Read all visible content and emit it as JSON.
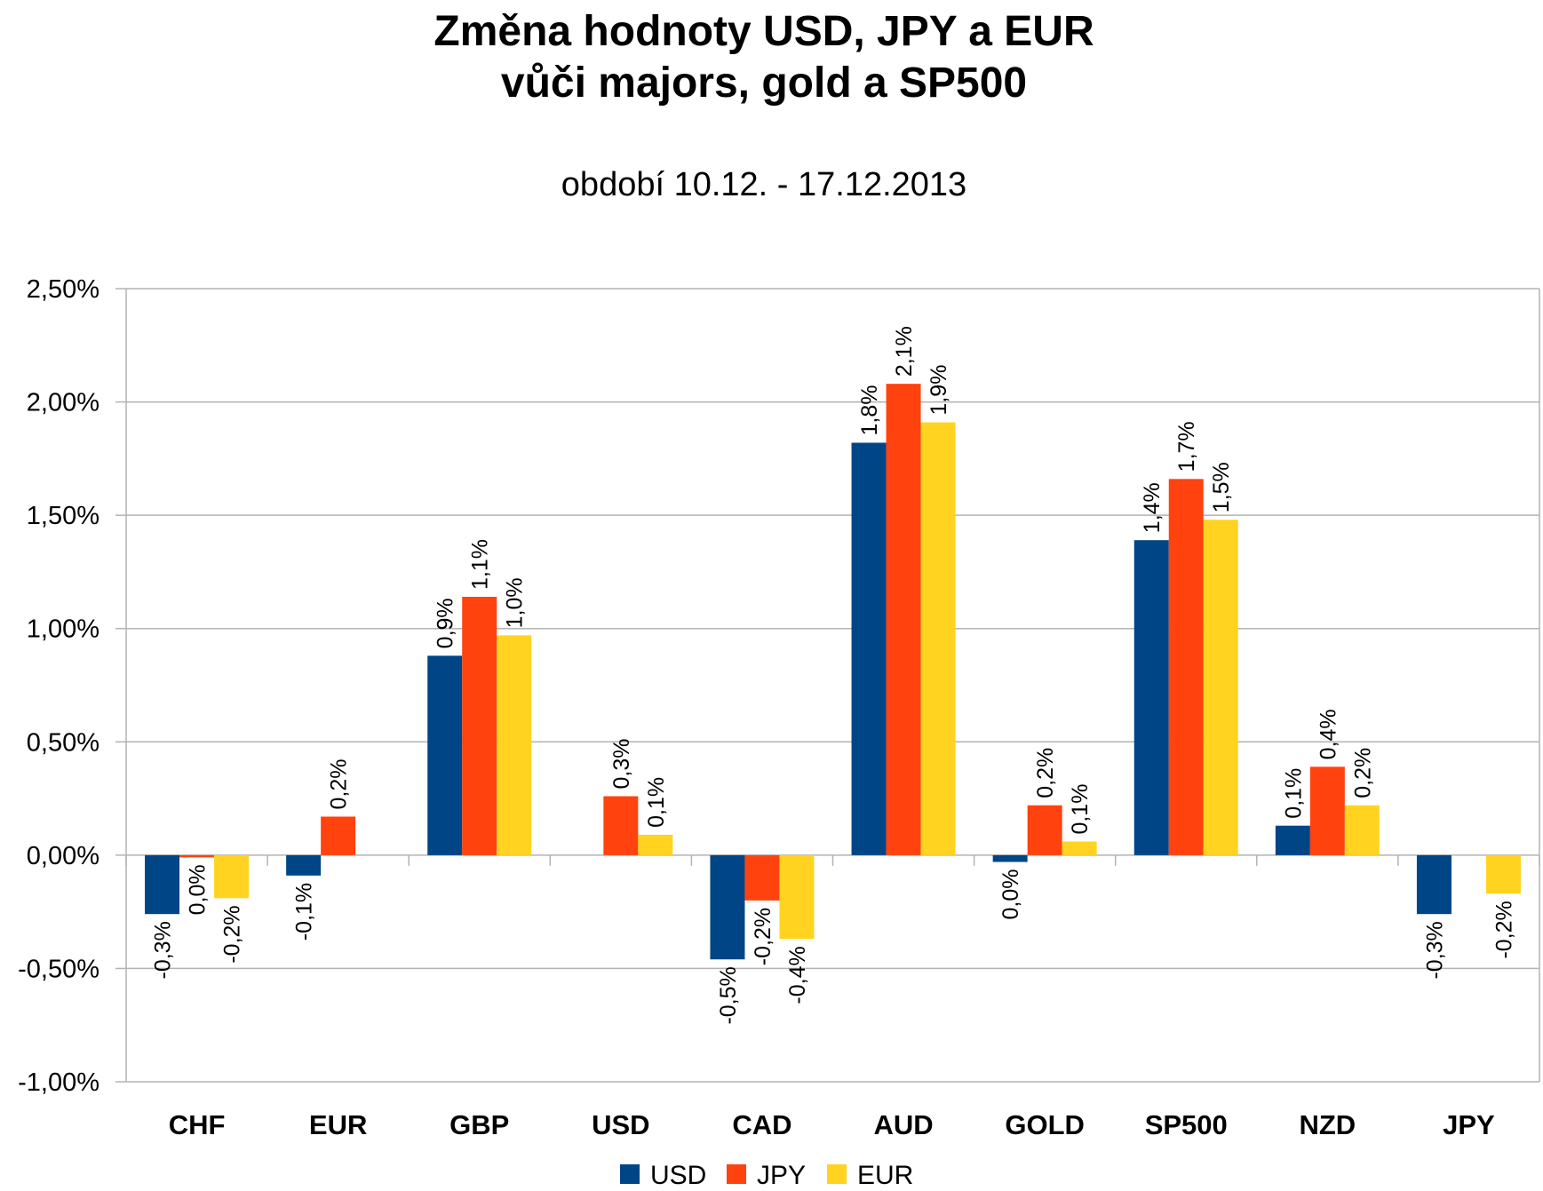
{
  "chart_data": {
    "type": "bar",
    "title_line1": "Změna hodnoty USD, JPY a EUR",
    "title_line2": "vůči majors, gold a SP500",
    "subtitle": "období 10.12. - 17.12.2013",
    "categories": [
      "CHF",
      "EUR",
      "GBP",
      "USD",
      "CAD",
      "AUD",
      "GOLD",
      "SP500",
      "NZD",
      "JPY"
    ],
    "series": [
      {
        "name": "USD",
        "color": "#004586",
        "values": [
          -0.26,
          -0.09,
          0.88,
          null,
          -0.46,
          1.82,
          -0.03,
          1.39,
          0.13,
          -0.26
        ],
        "labels": [
          "-0,3%",
          "-0,1%",
          "0,9%",
          "",
          "-0,5%",
          "1,8%",
          "0,0%",
          "1,4%",
          "0,1%",
          "-0,3%"
        ]
      },
      {
        "name": "JPY",
        "color": "#ff420e",
        "values": [
          -0.01,
          0.17,
          1.14,
          0.26,
          -0.2,
          2.08,
          0.22,
          1.66,
          0.39,
          null
        ],
        "labels": [
          "0,0%",
          "0,2%",
          "1,1%",
          "0,3%",
          "-0,2%",
          "2,1%",
          "0,2%",
          "1,7%",
          "0,4%",
          ""
        ]
      },
      {
        "name": "EUR",
        "color": "#ffd320",
        "values": [
          -0.19,
          null,
          0.97,
          0.09,
          -0.37,
          1.91,
          0.06,
          1.48,
          0.22,
          -0.17
        ],
        "labels": [
          "-0,2%",
          "",
          "1,0%",
          "0,1%",
          "-0,4%",
          "1,9%",
          "0,1%",
          "1,5%",
          "0,2%",
          "-0,2%"
        ]
      }
    ],
    "ylim": [
      -1.0,
      2.5
    ],
    "yticks": [
      2.5,
      2.0,
      1.5,
      1.0,
      0.5,
      0.0,
      -0.5,
      -1.0
    ],
    "ytick_labels": [
      "2,50%",
      "2,00%",
      "1,50%",
      "1,00%",
      "0,50%",
      "0,00%",
      "-0,50%",
      "-1,00%"
    ],
    "grid": true,
    "legend_position": "bottom"
  }
}
